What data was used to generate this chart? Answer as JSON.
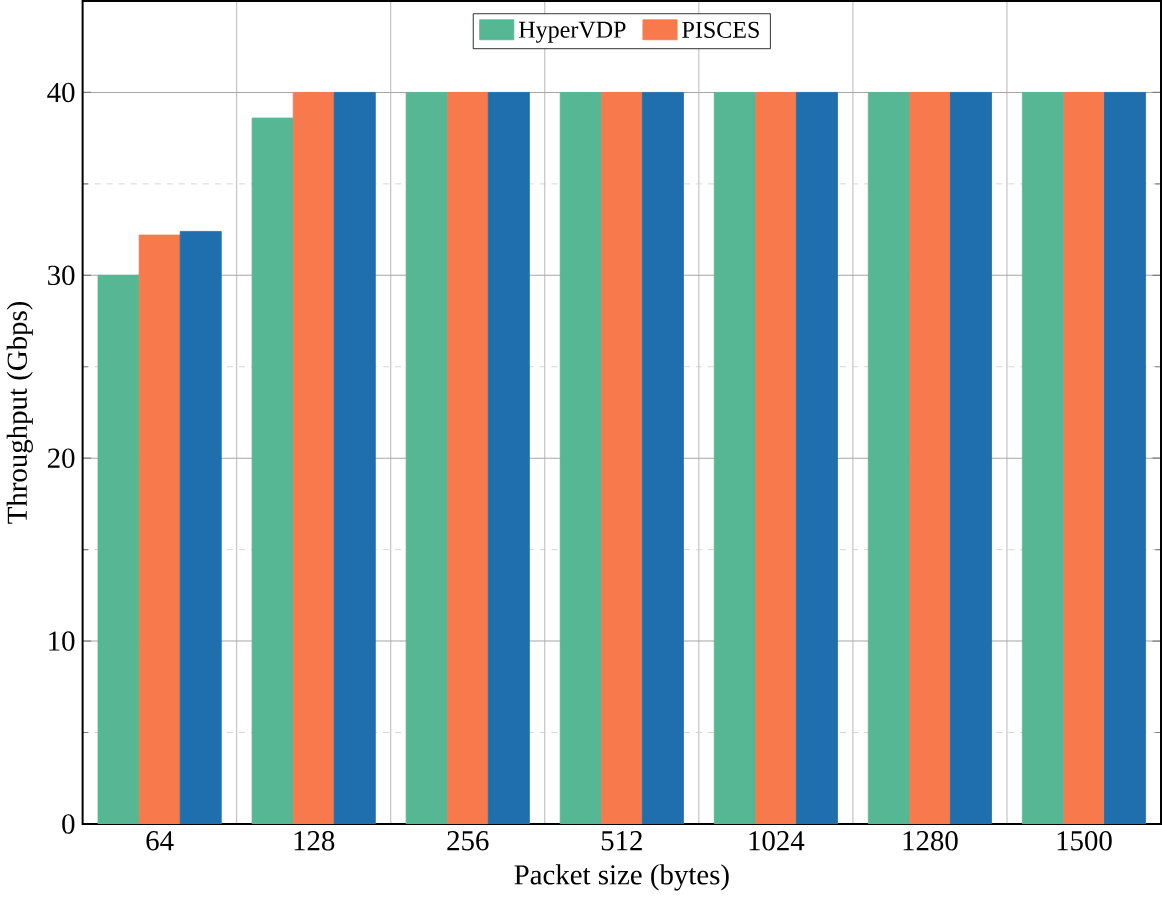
{
  "chart_data": {
    "type": "bar",
    "xlabel": "Packet size (bytes)",
    "ylabel": "Throughput (Gbps)",
    "categories": [
      "64",
      "128",
      "256",
      "512",
      "1024",
      "1280",
      "1500"
    ],
    "series": [
      {
        "name": "HyperVDP",
        "color": "#55b794",
        "values": [
          30,
          38.6,
          40,
          40,
          40,
          40,
          40
        ]
      },
      {
        "name": "PISCES",
        "color": "#f7794c",
        "values": [
          32.2,
          40,
          40,
          40,
          40,
          40,
          40
        ]
      },
      {
        "color": "#1f6fae",
        "values": [
          32.4,
          40,
          40,
          40,
          40,
          40,
          40
        ]
      }
    ],
    "ylim": [
      0,
      45
    ],
    "yticks": [
      0,
      10,
      20,
      30,
      40
    ],
    "grid": true,
    "legend": "top"
  }
}
